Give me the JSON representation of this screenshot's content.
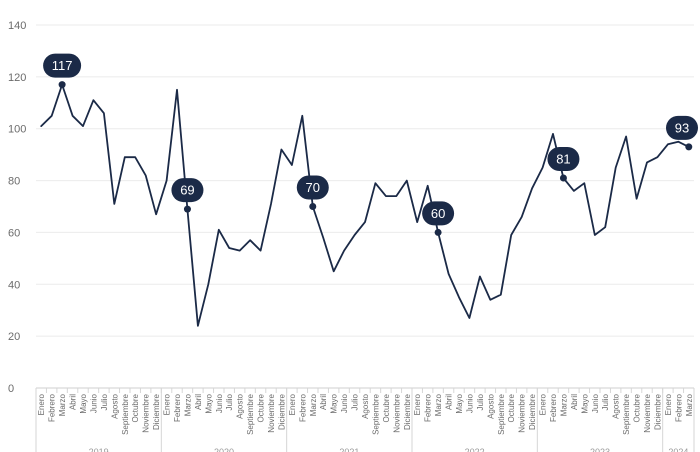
{
  "chart_data": {
    "type": "line",
    "title": "",
    "xlabel": "",
    "ylabel": "",
    "ylim": [
      0,
      140
    ],
    "yticks": [
      0,
      20,
      40,
      60,
      80,
      100,
      120,
      140
    ],
    "grid": true,
    "x": [
      "Enero",
      "Febrero",
      "Marzo",
      "Abril",
      "Mayo",
      "Junio",
      "Julio",
      "Agosto",
      "Septiembre",
      "Octubre",
      "Noviembre",
      "Diciembre",
      "Enero",
      "Febrero",
      "Marzo",
      "Abril",
      "Mayo",
      "Junio",
      "Julio",
      "Agosto",
      "Septiembre",
      "Octubre",
      "Noviembre",
      "Diciembre",
      "Enero",
      "Febrero",
      "Marzo",
      "Abril",
      "Mayo",
      "Junio",
      "Julio",
      "Agosto",
      "Septiembre",
      "Octubre",
      "Noviembre",
      "Diciembre",
      "Enero",
      "Febrero",
      "Marzo",
      "Abril",
      "Mayo",
      "Junio",
      "Julio",
      "Agosto",
      "Septiembre",
      "Octubre",
      "Noviembre",
      "Diciembre",
      "Enero",
      "Febrero",
      "Marzo",
      "Abril",
      "Mayo",
      "Junio",
      "Julio",
      "Agosto",
      "Septiembre",
      "Octubre",
      "Noviembre",
      "Diciembre",
      "Enero",
      "Febrero",
      "Marzo"
    ],
    "years": [
      {
        "label": "2019",
        "start": 0,
        "end": 11
      },
      {
        "label": "2020",
        "start": 12,
        "end": 23
      },
      {
        "label": "2021",
        "start": 24,
        "end": 35
      },
      {
        "label": "2022",
        "start": 36,
        "end": 47
      },
      {
        "label": "2023",
        "start": 48,
        "end": 59
      },
      {
        "label": "2024",
        "start": 60,
        "end": 62
      }
    ],
    "series": [
      {
        "color": "#1b2a47",
        "values": [
          101,
          105,
          117,
          105,
          101,
          111,
          106,
          71,
          89,
          89,
          82,
          67,
          80,
          115,
          69,
          24,
          40,
          61,
          54,
          53,
          57,
          53,
          71,
          92,
          86,
          105,
          70,
          58,
          45,
          53,
          59,
          64,
          79,
          74,
          74,
          80,
          64,
          78,
          60,
          44,
          35,
          27,
          43,
          34,
          36,
          59,
          66,
          77,
          85,
          98,
          81,
          76,
          79,
          59,
          62,
          85,
          97,
          73,
          87,
          89,
          94,
          95,
          93
        ]
      }
    ],
    "annotations": [
      {
        "index": 2,
        "value": 117,
        "label": "117"
      },
      {
        "index": 14,
        "value": 69,
        "label": "69"
      },
      {
        "index": 26,
        "value": 70,
        "label": "70"
      },
      {
        "index": 38,
        "value": 60,
        "label": "60"
      },
      {
        "index": 50,
        "value": 81,
        "label": "81"
      },
      {
        "index": 62,
        "value": 93,
        "label": "93"
      }
    ]
  }
}
